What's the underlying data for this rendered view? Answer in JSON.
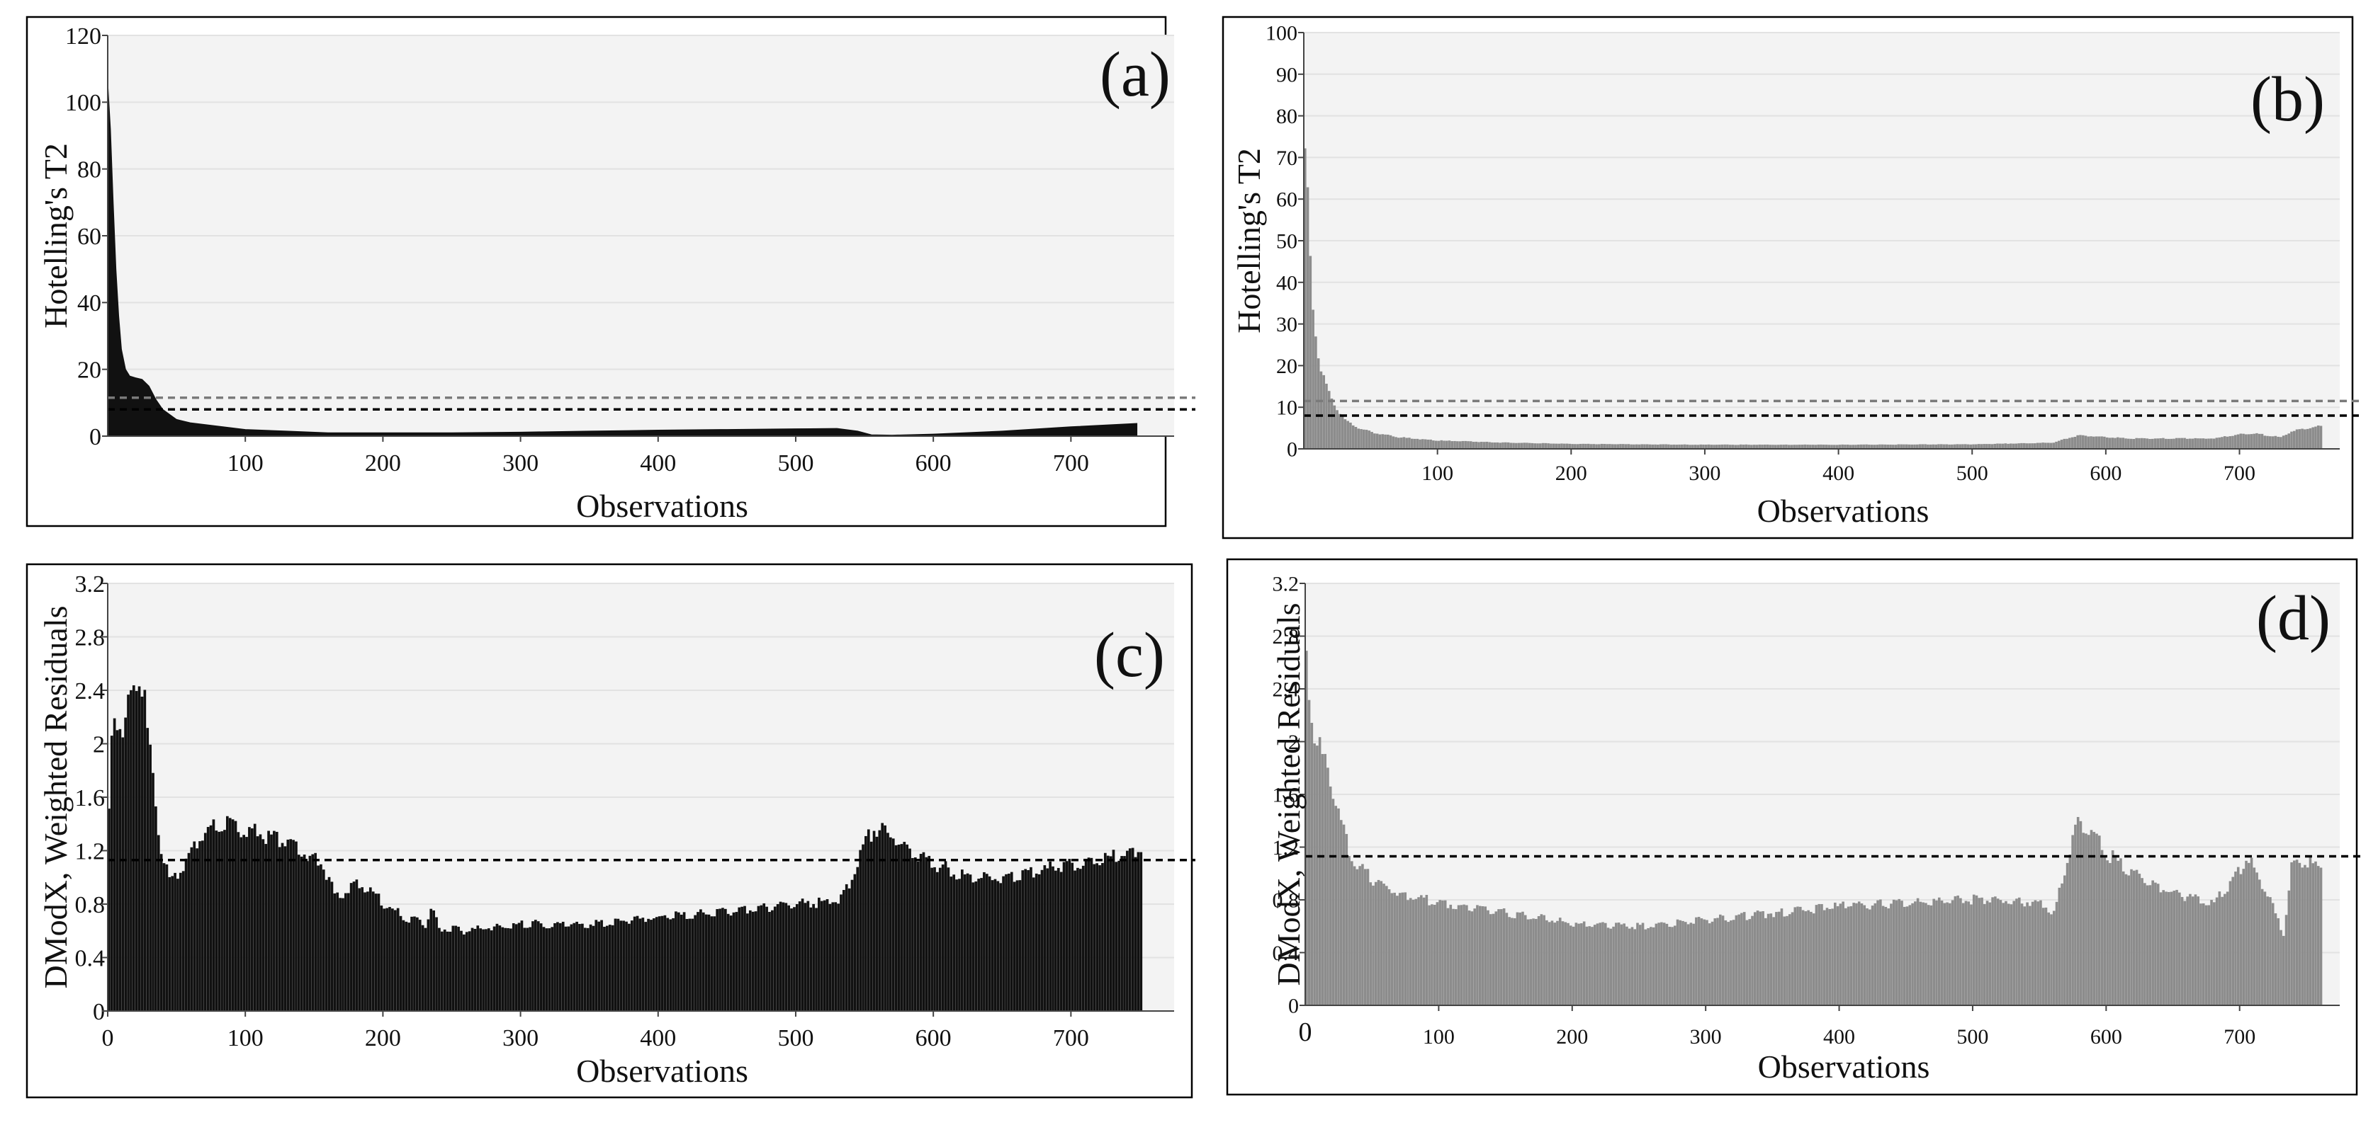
{
  "figure": {
    "panel_colors": {
      "fill_dark": "#111111",
      "fill_gray": "#8c8c8c",
      "plot_bg": "#f3f3f3",
      "grid": "#e2e2e2",
      "frame": "#000000"
    }
  },
  "chart_data": [
    {
      "id": "a",
      "panel_label": "(a)",
      "type": "area",
      "color": "#111111",
      "xlabel": "Observations",
      "ylabel": "Hotelling's T2",
      "xlim": [
        0,
        775
      ],
      "ylim": [
        0,
        120
      ],
      "xticks": [
        100,
        200,
        300,
        400,
        500,
        600,
        700
      ],
      "yticks": [
        0,
        20,
        40,
        60,
        80,
        100,
        120
      ],
      "grid": true,
      "limit_lines": [
        {
          "value": 11.5,
          "style": "dashed",
          "color": "#7a7a7a"
        },
        {
          "value": 8,
          "style": "dashed",
          "color": "#000000"
        }
      ],
      "series": [
        {
          "name": "Hotelling's T2",
          "x": [
            0,
            2,
            4,
            6,
            8,
            10,
            13,
            16,
            20,
            25,
            30,
            35,
            40,
            50,
            60,
            80,
            100,
            130,
            160,
            200,
            250,
            300,
            350,
            400,
            450,
            500,
            530,
            545,
            555,
            570,
            600,
            650,
            700,
            748
          ],
          "y": [
            106,
            92,
            70,
            50,
            36,
            26,
            20,
            18,
            17.5,
            17,
            15,
            11,
            8,
            5,
            4,
            3,
            2,
            1.5,
            1,
            1,
            1,
            1.2,
            1.5,
            1.8,
            2,
            2.2,
            2.3,
            1.5,
            0.4,
            0.3,
            0.6,
            1.5,
            2.8,
            3.8
          ]
        }
      ]
    },
    {
      "id": "b",
      "panel_label": "(b)",
      "type": "bar",
      "color": "#8c8c8c",
      "xlabel": "Observations",
      "ylabel": "Hotelling's T2",
      "xlim": [
        0,
        775
      ],
      "ylim": [
        0,
        100
      ],
      "xticks": [
        100,
        200,
        300,
        400,
        500,
        600,
        700
      ],
      "yticks": [
        0,
        10,
        20,
        30,
        40,
        50,
        60,
        70,
        80,
        90,
        100
      ],
      "grid": true,
      "limit_lines": [
        {
          "value": 11.5,
          "style": "dashed",
          "color": "#7a7a7a"
        },
        {
          "value": 8,
          "style": "dashed",
          "color": "#000000"
        }
      ],
      "series": [
        {
          "name": "Hotelling's T2",
          "x": [
            0,
            2,
            4,
            6,
            8,
            10,
            13,
            16,
            20,
            25,
            30,
            40,
            50,
            70,
            100,
            150,
            200,
            300,
            400,
            500,
            560,
            575,
            580,
            600,
            620,
            650,
            680,
            700,
            710,
            720,
            730,
            740,
            760
          ],
          "y": [
            70,
            60,
            45,
            35,
            28,
            22,
            18,
            15,
            12,
            9,
            7,
            5,
            4,
            2.8,
            2,
            1.5,
            1.2,
            1,
            1,
            1.1,
            1.5,
            3,
            3.2,
            2.8,
            2.5,
            2.5,
            2.5,
            3.5,
            3.8,
            3.2,
            2.8,
            4.5,
            5.5
          ]
        }
      ]
    },
    {
      "id": "c",
      "panel_label": "(c)",
      "type": "bar",
      "color": "#111111",
      "xlabel": "Observations",
      "ylabel": "DModX, Weighted Residuals",
      "xlim": [
        0,
        775
      ],
      "ylim": [
        0,
        3.2
      ],
      "xticks": [
        0,
        100,
        200,
        300,
        400,
        500,
        600,
        700
      ],
      "yticks": [
        0,
        0.4,
        0.8,
        1.2,
        1.6,
        2,
        2.4,
        2.8,
        3.2
      ],
      "grid": true,
      "limit_lines": [
        {
          "value": 1.13,
          "style": "dashed",
          "color": "#000000"
        }
      ],
      "series": [
        {
          "name": "DModX",
          "x": [
            0,
            3,
            6,
            10,
            15,
            20,
            25,
            28,
            32,
            38,
            45,
            55,
            70,
            85,
            100,
            120,
            140,
            155,
            165,
            180,
            190,
            200,
            215,
            230,
            235,
            240,
            260,
            300,
            350,
            400,
            450,
            500,
            530,
            540,
            550,
            560,
            575,
            600,
            625,
            650,
            700,
            740,
            750
          ],
          "y": [
            1.5,
            2.3,
            2.2,
            2.1,
            2.3,
            2.5,
            2.4,
            2.1,
            1.7,
            1.2,
            0.95,
            1.1,
            1.35,
            1.4,
            1.35,
            1.3,
            1.2,
            1.1,
            0.85,
            0.95,
            0.9,
            0.8,
            0.7,
            0.65,
            0.78,
            0.62,
            0.6,
            0.65,
            0.65,
            0.7,
            0.75,
            0.8,
            0.82,
            1,
            1.3,
            1.38,
            1.25,
            1.1,
            1,
            1,
            1.1,
            1.18,
            1.2
          ]
        }
      ]
    },
    {
      "id": "d",
      "panel_label": "(d)",
      "type": "bar",
      "color": "#8c8c8c",
      "xlabel": "Observations",
      "ylabel": "DModX, Weighted Residuals",
      "xlim": [
        0,
        775
      ],
      "ylim": [
        0,
        3.2
      ],
      "xticks": [
        100,
        200,
        300,
        400,
        500,
        600,
        700
      ],
      "yticks": [
        0,
        0.4,
        0.8,
        1.2,
        1.6,
        2,
        2.4,
        2.8,
        3.2
      ],
      "extra_tick_label": {
        "value": 0,
        "text": "0"
      },
      "grid": true,
      "limit_lines": [
        {
          "value": 1.13,
          "style": "dashed",
          "color": "#000000"
        }
      ],
      "series": [
        {
          "name": "DModX",
          "x": [
            0,
            3,
            8,
            15,
            25,
            35,
            50,
            70,
            100,
            150,
            200,
            250,
            300,
            350,
            400,
            450,
            500,
            550,
            560,
            570,
            578,
            590,
            600,
            620,
            650,
            680,
            695,
            705,
            715,
            725,
            732,
            738,
            745,
            760
          ],
          "y": [
            2.6,
            2.2,
            2,
            1.8,
            1.4,
            1.1,
            0.95,
            0.85,
            0.78,
            0.7,
            0.62,
            0.6,
            0.65,
            0.7,
            0.75,
            0.78,
            0.8,
            0.78,
            0.7,
            1.1,
            1.38,
            1.3,
            1.15,
            1,
            0.85,
            0.78,
            0.95,
            1.12,
            0.95,
            0.72,
            0.55,
            1.05,
            1.1,
            1.05
          ]
        }
      ]
    }
  ]
}
